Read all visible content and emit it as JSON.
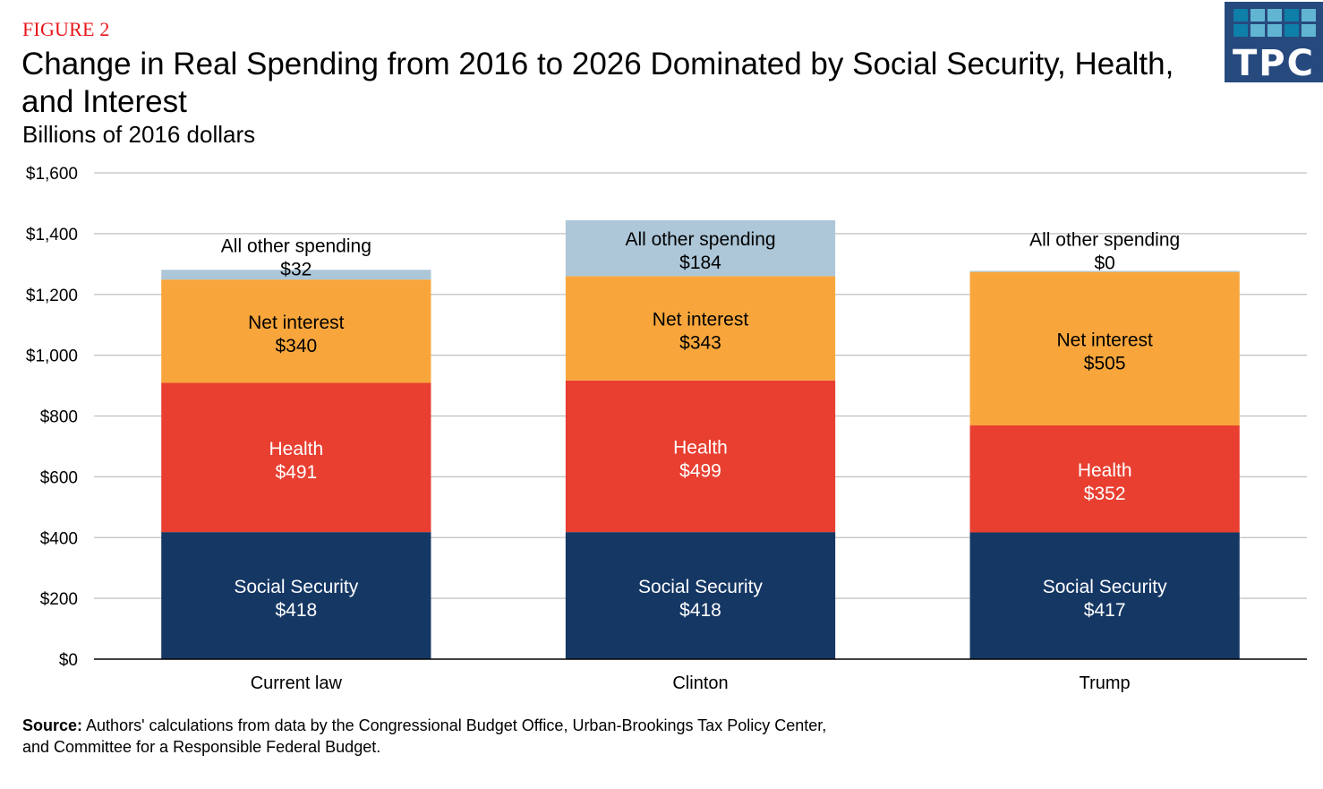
{
  "header": {
    "figure_label": "FIGURE 2",
    "title": "Change in Real Spending from 2016 to 2026 Dominated by Social Security, Health, and Interest",
    "subtitle": "Billions of 2016 dollars"
  },
  "logo": {
    "text": "TPC",
    "background": "#264a7e",
    "square_colors": [
      "#0e7fa8",
      "#62b5d2",
      "#62b5d2",
      "#0e7fa8",
      "#62b5d2",
      "#0e7fa8",
      "#62b5d2",
      "#62b5d2",
      "#0e7fa8",
      "#62b5d2"
    ]
  },
  "source": {
    "label": "Source:",
    "text": " Authors' calculations from data by the Congressional Budget Office, Urban-Brookings Tax Policy Center, and Committee for a Responsible Federal Budget."
  },
  "chart_data": {
    "type": "bar",
    "stacked": true,
    "title": "Change in Real Spending from 2016 to 2026 Dominated by Social Security, Health, and Interest",
    "subtitle": "Billions of 2016 dollars",
    "xlabel": "",
    "ylabel": "Billions of 2016 dollars",
    "ylim": [
      0,
      1600
    ],
    "yticks": [
      0,
      200,
      400,
      600,
      800,
      1000,
      1200,
      1400,
      1600
    ],
    "ytick_labels": [
      "$0",
      "$200",
      "$400",
      "$600",
      "$800",
      "$1,000",
      "$1,200",
      "$1,400",
      "$1,600"
    ],
    "grid": true,
    "legend": "none (inline labels)",
    "categories": [
      "Current law",
      "Clinton",
      "Trump"
    ],
    "series": [
      {
        "name": "Social Security",
        "color": "#153764",
        "label_color": "#ffffff",
        "values": [
          418,
          418,
          417
        ],
        "labels": [
          "$418",
          "$418",
          "$417"
        ]
      },
      {
        "name": "Health",
        "color": "#e83f31",
        "label_color": "#ffffff",
        "values": [
          491,
          499,
          352
        ],
        "labels": [
          "$491",
          "$499",
          "$352"
        ]
      },
      {
        "name": "Net interest",
        "color": "#f8a63c",
        "label_color": "#000000",
        "values": [
          340,
          343,
          505
        ],
        "labels": [
          "$340",
          "$343",
          "$505"
        ]
      },
      {
        "name": "All other spending",
        "color": "#adc7d8",
        "label_color": "#000000",
        "values": [
          32,
          184,
          0
        ],
        "labels": [
          "$32",
          "$184",
          "$0"
        ]
      }
    ]
  }
}
